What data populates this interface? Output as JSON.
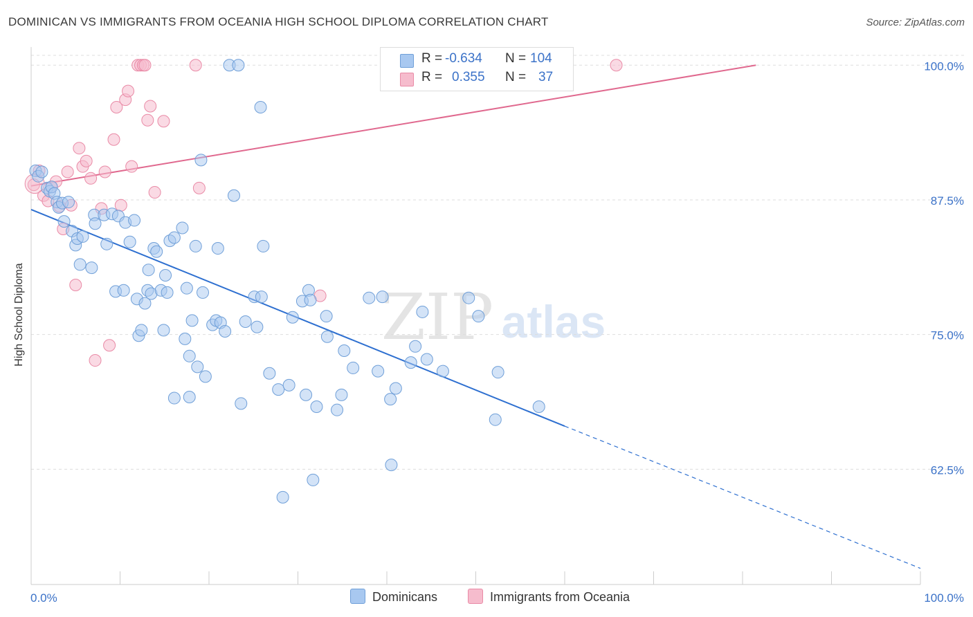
{
  "title": "DOMINICAN VS IMMIGRANTS FROM OCEANIA HIGH SCHOOL DIPLOMA CORRELATION CHART",
  "source": "Source: ZipAtlas.com",
  "watermark": {
    "zip": "ZIP",
    "atlas": "atlas"
  },
  "colors": {
    "blue_fill": "#a8c8f0",
    "blue_stroke": "#6f9fd8",
    "blue_line": "#2d6fd0",
    "pink_fill": "#f6bccd",
    "pink_stroke": "#e98aa6",
    "pink_line": "#e0688e",
    "tick_label": "#3b72c8",
    "grid": "#dddddd"
  },
  "legend": {
    "rows": [
      {
        "r_label": "R =",
        "r_value": "-0.634",
        "n_label": "N =",
        "n_value": "104"
      },
      {
        "r_label": "R =",
        "r_value": "0.355",
        "n_label": "N =",
        "n_value": "37"
      }
    ]
  },
  "bottom_legend": {
    "series1": "Dominicans",
    "series2": "Immigrants from Oceania"
  },
  "chart_data": {
    "type": "scatter",
    "xlabel": "",
    "ylabel": "High School Diploma",
    "xlim": [
      0,
      100
    ],
    "ylim": [
      51.8,
      102.2
    ],
    "x_tick_labels": [
      "0.0%",
      "100.0%"
    ],
    "y_ticks": [
      62.5,
      75.0,
      87.5,
      100.0
    ],
    "y_tick_labels": [
      "62.5%",
      "75.0%",
      "87.5%",
      "100.0%"
    ],
    "grid": true,
    "series": [
      {
        "name": "Dominicans",
        "r": -0.634,
        "n": 104,
        "trend": {
          "x0": 0,
          "y0": 86.6,
          "x1": 60,
          "y1": 66.5,
          "dash_to_x": 100,
          "dash_to_y": 53.3
        },
        "points": [
          [
            0.5,
            90.2
          ],
          [
            0.8,
            89.7
          ],
          [
            1.2,
            90.1
          ],
          [
            1.8,
            88.6
          ],
          [
            2.1,
            88.3
          ],
          [
            2.3,
            88.7
          ],
          [
            2.6,
            88.1
          ],
          [
            2.9,
            87.3
          ],
          [
            3.1,
            86.8
          ],
          [
            3.5,
            87.2
          ],
          [
            3.7,
            85.5
          ],
          [
            4.2,
            87.3
          ],
          [
            4.6,
            84.6
          ],
          [
            5.0,
            83.3
          ],
          [
            5.2,
            83.9
          ],
          [
            5.8,
            84.1
          ],
          [
            5.5,
            81.5
          ],
          [
            6.8,
            81.2
          ],
          [
            7.1,
            86.1
          ],
          [
            7.2,
            85.3
          ],
          [
            8.2,
            86.1
          ],
          [
            8.5,
            83.4
          ],
          [
            9.1,
            86.2
          ],
          [
            9.5,
            79.0
          ],
          [
            9.8,
            86.0
          ],
          [
            10.4,
            79.1
          ],
          [
            10.6,
            85.4
          ],
          [
            11.1,
            83.6
          ],
          [
            11.6,
            85.6
          ],
          [
            11.9,
            78.3
          ],
          [
            12.1,
            74.9
          ],
          [
            12.4,
            75.4
          ],
          [
            12.8,
            77.9
          ],
          [
            13.1,
            79.1
          ],
          [
            13.2,
            81.0
          ],
          [
            13.5,
            78.8
          ],
          [
            13.8,
            83.0
          ],
          [
            14.1,
            82.7
          ],
          [
            14.6,
            79.1
          ],
          [
            14.9,
            75.4
          ],
          [
            15.1,
            80.5
          ],
          [
            15.3,
            78.9
          ],
          [
            15.6,
            83.7
          ],
          [
            16.1,
            84.0
          ],
          [
            16.1,
            69.1
          ],
          [
            17.0,
            84.9
          ],
          [
            17.3,
            74.6
          ],
          [
            17.5,
            79.3
          ],
          [
            17.8,
            73.0
          ],
          [
            18.1,
            76.3
          ],
          [
            18.5,
            83.2
          ],
          [
            18.7,
            72.0
          ],
          [
            19.1,
            91.2
          ],
          [
            19.3,
            78.9
          ],
          [
            19.6,
            71.1
          ],
          [
            20.4,
            75.9
          ],
          [
            20.8,
            76.3
          ],
          [
            21.0,
            83.0
          ],
          [
            21.3,
            76.1
          ],
          [
            21.8,
            75.3
          ],
          [
            22.3,
            100.0
          ],
          [
            22.8,
            87.9
          ],
          [
            23.3,
            100.0
          ],
          [
            23.6,
            68.6
          ],
          [
            24.1,
            76.2
          ],
          [
            25.1,
            78.5
          ],
          [
            25.4,
            75.7
          ],
          [
            25.8,
            96.1
          ],
          [
            26.1,
            83.2
          ],
          [
            26.8,
            71.4
          ],
          [
            27.8,
            69.9
          ],
          [
            28.3,
            59.9
          ],
          [
            29.0,
            70.3
          ],
          [
            29.4,
            76.6
          ],
          [
            30.5,
            78.1
          ],
          [
            30.9,
            69.4
          ],
          [
            31.2,
            79.1
          ],
          [
            31.4,
            78.2
          ],
          [
            31.7,
            61.5
          ],
          [
            32.1,
            68.3
          ],
          [
            33.2,
            76.7
          ],
          [
            33.3,
            74.8
          ],
          [
            34.4,
            68.0
          ],
          [
            34.9,
            69.4
          ],
          [
            35.2,
            73.5
          ],
          [
            38.0,
            78.4
          ],
          [
            39.0,
            71.6
          ],
          [
            39.5,
            78.5
          ],
          [
            40.4,
            69.0
          ],
          [
            40.5,
            62.9
          ],
          [
            41.0,
            70.0
          ],
          [
            42.7,
            72.4
          ],
          [
            43.2,
            73.9
          ],
          [
            44.0,
            77.1
          ],
          [
            44.5,
            72.7
          ],
          [
            46.3,
            71.6
          ],
          [
            49.2,
            78.4
          ],
          [
            50.3,
            76.7
          ],
          [
            52.2,
            67.1
          ],
          [
            52.5,
            71.5
          ],
          [
            57.1,
            68.3
          ],
          [
            17.8,
            69.2
          ],
          [
            25.9,
            78.5
          ],
          [
            36.2,
            71.9
          ]
        ]
      },
      {
        "name": "Immigrants from Oceania",
        "r": 0.355,
        "n": 37,
        "trend": {
          "x0": 0,
          "y0": 88.8,
          "x1": 81.5,
          "y1": 100.0
        },
        "points": [
          [
            0.3,
            88.9
          ],
          [
            0.9,
            90.2
          ],
          [
            1.4,
            87.9
          ],
          [
            1.9,
            87.4
          ],
          [
            2.3,
            88.7
          ],
          [
            2.8,
            89.2
          ],
          [
            3.2,
            86.9
          ],
          [
            3.6,
            84.8
          ],
          [
            4.1,
            90.1
          ],
          [
            4.5,
            87.0
          ],
          [
            5.0,
            79.6
          ],
          [
            5.4,
            92.3
          ],
          [
            5.8,
            90.6
          ],
          [
            6.2,
            91.1
          ],
          [
            6.7,
            89.5
          ],
          [
            7.2,
            72.6
          ],
          [
            7.9,
            86.7
          ],
          [
            8.3,
            90.1
          ],
          [
            8.8,
            74.0
          ],
          [
            9.3,
            93.1
          ],
          [
            9.6,
            96.1
          ],
          [
            10.1,
            87.0
          ],
          [
            10.6,
            96.8
          ],
          [
            10.9,
            97.6
          ],
          [
            11.3,
            90.6
          ],
          [
            12.0,
            100.0
          ],
          [
            12.3,
            100.0
          ],
          [
            12.6,
            100.0
          ],
          [
            12.8,
            100.0
          ],
          [
            13.1,
            94.9
          ],
          [
            13.4,
            96.2
          ],
          [
            13.9,
            88.2
          ],
          [
            14.9,
            94.8
          ],
          [
            18.5,
            100.0
          ],
          [
            18.9,
            88.6
          ],
          [
            32.5,
            78.6
          ],
          [
            65.8,
            100.0
          ]
        ]
      }
    ]
  }
}
